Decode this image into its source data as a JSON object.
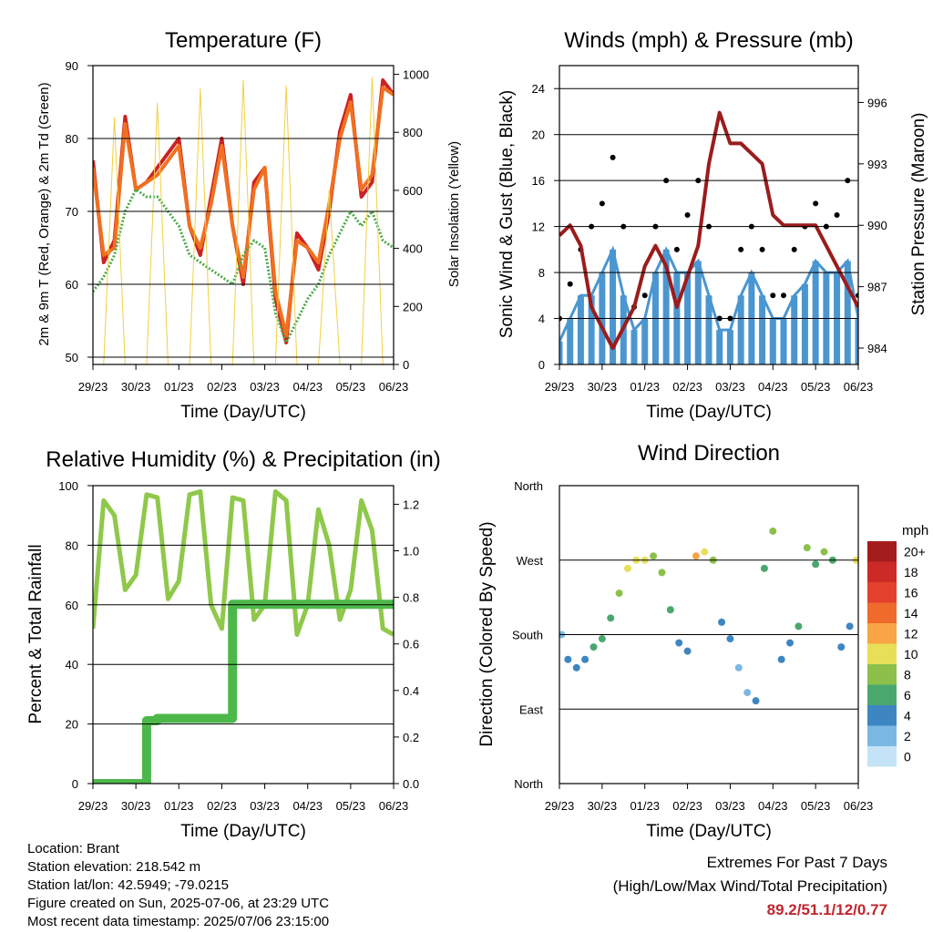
{
  "x_ticks": [
    "29/23",
    "30/23",
    "01/23",
    "02/23",
    "03/23",
    "04/23",
    "05/23",
    "06/23"
  ],
  "x_axis_label": "Time (Day/UTC)",
  "chart_data": [
    {
      "type": "line",
      "title": "Temperature (F)",
      "xlabel": "Time (Day/UTC)",
      "ylabel": "2m & 9m T (Red, Orange) & 2m Td (Green)",
      "ylabel_right": "Solar Insolation (Yellow)",
      "ylim": [
        49,
        90
      ],
      "yticks": [
        50,
        60,
        70,
        80,
        90
      ],
      "ylim_right": [
        0,
        1030
      ],
      "yticks_right": [
        0,
        200,
        400,
        600,
        800,
        1000
      ],
      "x": [
        0,
        0.25,
        0.5,
        0.75,
        1,
        1.25,
        1.5,
        1.75,
        2,
        2.25,
        2.5,
        2.75,
        3,
        3.25,
        3.5,
        3.75,
        4,
        4.25,
        4.5,
        4.75,
        5,
        5.25,
        5.5,
        5.75,
        6,
        6.25,
        6.5,
        6.75,
        7
      ],
      "series": [
        {
          "name": "2m T",
          "color": "#cc2222",
          "values": [
            77,
            63,
            66,
            83,
            73,
            74,
            76,
            78,
            80,
            68,
            64,
            72,
            80,
            68,
            60,
            74,
            76,
            58,
            52,
            67,
            65,
            62,
            70,
            81,
            86,
            72,
            74,
            88,
            86
          ]
        },
        {
          "name": "9m T",
          "color": "#f07020",
          "values": [
            76,
            64,
            65,
            82,
            73,
            74,
            75,
            77,
            79,
            68,
            65,
            71,
            79,
            68,
            61,
            73,
            76,
            59,
            53,
            66,
            65,
            63,
            71,
            80,
            85,
            73,
            75,
            87,
            86
          ]
        },
        {
          "name": "2m Td",
          "color": "#4aaa44",
          "values": [
            59,
            61,
            64,
            70,
            73,
            72,
            72,
            70,
            68,
            64,
            63,
            62,
            61,
            60,
            64,
            66,
            65,
            56,
            52,
            55,
            58,
            60,
            64,
            67,
            70,
            68,
            70,
            66,
            65
          ]
        },
        {
          "name": "Solar",
          "color": "#f2cf40",
          "values": [
            0,
            0,
            850,
            0,
            0,
            0,
            900,
            0,
            0,
            0,
            950,
            0,
            0,
            0,
            980,
            0,
            0,
            0,
            960,
            0,
            0,
            0,
            600,
            0,
            0,
            0,
            990,
            0,
            0
          ]
        }
      ]
    },
    {
      "type": "scatter",
      "title": "Winds (mph) & Pressure (mb)",
      "xlabel": "Time (Day/UTC)",
      "ylabel": "Sonic Wind & Gust (Blue, Black)",
      "ylabel_right": "Station Pressure (Maroon)",
      "ylim": [
        0,
        26
      ],
      "yticks": [
        0,
        4,
        8,
        12,
        16,
        20,
        24
      ],
      "ylim_right": [
        983.2,
        997.8
      ],
      "yticks_right": [
        984,
        987,
        990,
        993,
        996
      ],
      "x": [
        0,
        0.25,
        0.5,
        0.75,
        1,
        1.25,
        1.5,
        1.75,
        2,
        2.25,
        2.5,
        2.75,
        3,
        3.25,
        3.5,
        3.75,
        4,
        4.25,
        4.5,
        4.75,
        5,
        5.25,
        5.5,
        5.75,
        6,
        6.25,
        6.5,
        6.75,
        7
      ],
      "series": [
        {
          "name": "Sonic Wind",
          "color": "#4a96d0",
          "values": [
            2,
            4,
            6,
            6,
            8,
            10,
            6,
            3,
            4,
            8,
            10,
            8,
            8,
            9,
            6,
            3,
            3,
            6,
            8,
            6,
            4,
            4,
            6,
            7,
            9,
            8,
            8,
            9,
            4
          ]
        },
        {
          "name": "Gust",
          "color": "#000000",
          "values": [
            4,
            7,
            10,
            12,
            14,
            18,
            12,
            5,
            6,
            12,
            16,
            10,
            13,
            16,
            12,
            4,
            4,
            10,
            12,
            10,
            6,
            6,
            10,
            12,
            14,
            12,
            13,
            16,
            6
          ]
        },
        {
          "name": "Pressure",
          "color": "#9b1c1c",
          "values": [
            989.5,
            990,
            989,
            986,
            985,
            984,
            985,
            986,
            988,
            989,
            988,
            986,
            987.5,
            989,
            993,
            995.5,
            994,
            994,
            993.5,
            993,
            990.5,
            990,
            990,
            990,
            990,
            989,
            988,
            987,
            986
          ]
        }
      ]
    },
    {
      "type": "line",
      "title": "Relative Humidity (%) & Precipitation (in)",
      "xlabel": "Time (Day/UTC)",
      "ylabel": "Percent & Total Rainfall",
      "ylim": [
        0,
        100
      ],
      "yticks": [
        0,
        20,
        40,
        60,
        80,
        100
      ],
      "ylim_right": [
        0,
        1.28
      ],
      "yticks_right": [
        "0.0",
        "0.2",
        "0.4",
        "0.6",
        "0.8",
        "1.0",
        "1.2"
      ],
      "x": [
        0,
        0.25,
        0.5,
        0.75,
        1,
        1.25,
        1.5,
        1.75,
        2,
        2.25,
        2.5,
        2.75,
        3,
        3.25,
        3.5,
        3.75,
        4,
        4.25,
        4.5,
        4.75,
        5,
        5.25,
        5.5,
        5.75,
        6,
        6.25,
        6.5,
        6.75,
        7
      ],
      "series": [
        {
          "name": "Relative Humidity",
          "color": "#8fc84a",
          "values": [
            52,
            95,
            90,
            65,
            70,
            97,
            96,
            62,
            68,
            97,
            98,
            60,
            52,
            96,
            95,
            55,
            60,
            98,
            95,
            50,
            60,
            92,
            80,
            55,
            65,
            95,
            85,
            52,
            50
          ]
        },
        {
          "name": "Total Precipitation",
          "color": "#4db84a",
          "values": [
            0,
            0,
            0,
            0,
            0,
            0.27,
            0.28,
            0.28,
            0.28,
            0.28,
            0.28,
            0.28,
            0.28,
            0.77,
            0.77,
            0.77,
            0.77,
            0.77,
            0.77,
            0.77,
            0.77,
            0.77,
            0.77,
            0.77,
            0.77,
            0.77,
            0.77,
            0.77,
            0.77
          ]
        }
      ]
    },
    {
      "type": "scatter",
      "title": "Wind Direction",
      "xlabel": "Time (Day/UTC)",
      "ylabel": "Direction (Colored By Speed)",
      "yticks": [
        "North",
        "East",
        "South",
        "West",
        "North"
      ],
      "ylim": [
        0,
        360
      ],
      "colorbar": {
        "title": "mph",
        "labels": [
          "20+",
          "18",
          "16",
          "14",
          "12",
          "10",
          "8",
          "6",
          "4",
          "2",
          "0"
        ],
        "colors": [
          "#a51c1c",
          "#cc2a26",
          "#e3412c",
          "#f06a2c",
          "#f7a545",
          "#e8df58",
          "#8cc04b",
          "#4aa86e",
          "#3e86c2",
          "#7ab8e2",
          "#c4e3f6"
        ]
      },
      "x": [
        0.05,
        0.2,
        0.4,
        0.6,
        0.8,
        1.0,
        1.2,
        1.4,
        1.6,
        1.8,
        2.0,
        2.2,
        2.4,
        2.6,
        2.8,
        3.0,
        3.2,
        3.4,
        3.6,
        3.8,
        4.0,
        4.2,
        4.4,
        4.6,
        4.8,
        5.0,
        5.2,
        5.4,
        5.6,
        5.8,
        6.0,
        6.2,
        6.4,
        6.6,
        6.8,
        6.95
      ],
      "values": [
        180,
        150,
        140,
        150,
        165,
        175,
        200,
        230,
        260,
        270,
        270,
        275,
        255,
        210,
        170,
        160,
        275,
        280,
        270,
        195,
        175,
        140,
        110,
        100,
        260,
        305,
        150,
        170,
        190,
        285,
        265,
        280,
        270,
        165,
        190,
        270
      ],
      "speeds": [
        2,
        3,
        3,
        4,
        6,
        5,
        6,
        8,
        9,
        9,
        10,
        8,
        8,
        6,
        4,
        3,
        11,
        10,
        8,
        4,
        3,
        2,
        2,
        3,
        6,
        8,
        4,
        3,
        5,
        7,
        6,
        8,
        5,
        4,
        3,
        9
      ]
    }
  ],
  "info": {
    "location": "Location: Brant",
    "elevation": "Station elevation: 218.542 m",
    "latlon": "Station lat/lon: 42.5949; -79.0215",
    "created": "Figure created on Sun, 2025-07-06, at 23:29 UTC",
    "recent": "Most recent data timestamp: 2025/07/06 23:15:00"
  },
  "extremes": {
    "title": "Extremes For Past 7 Days",
    "subtitle": "(High/Low/Max Wind/Total Precipitation)",
    "values": "89.2/51.1/12/0.77"
  }
}
